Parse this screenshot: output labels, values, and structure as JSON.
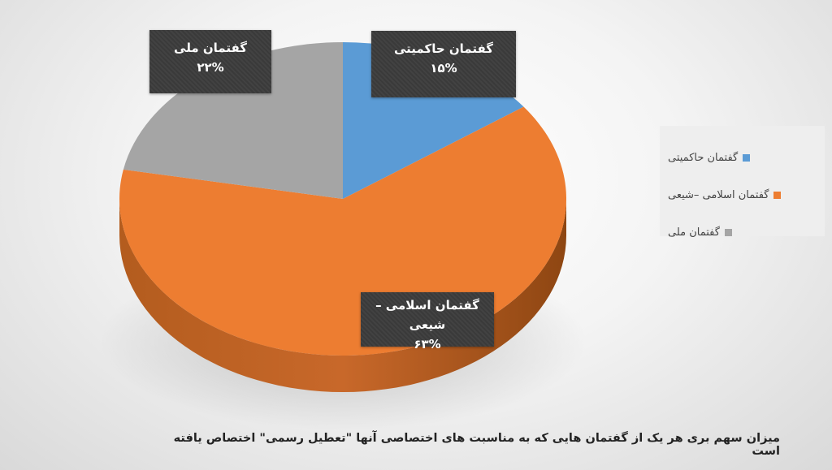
{
  "chart_data": {
    "type": "pie",
    "title": "میزان سهم بری هر یک از گفتمان هایی که به مناسبت های اختصاصی آنها \"تعطیل رسمی\" اختصاص یافته است",
    "legend_position": "right",
    "slices": [
      {
        "name": "گفتمان حاکمیتی",
        "value": 15,
        "label": "۱۵%",
        "color": "#5b9bd5"
      },
      {
        "name": "گفتمان اسلامی –شیعی",
        "value": 63,
        "label": "۶۳%",
        "color": "#ed7d31"
      },
      {
        "name": "گفتمان ملی",
        "value": 22,
        "label": "۲۲%",
        "color": "#a5a5a5"
      }
    ]
  }
}
